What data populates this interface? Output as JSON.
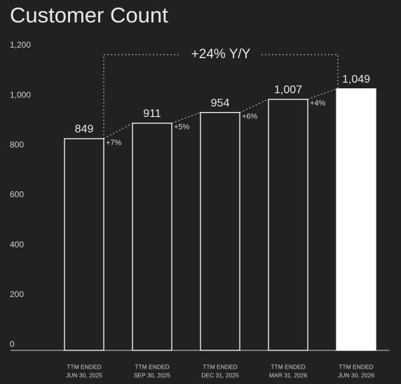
{
  "chart_data": {
    "type": "bar",
    "title": "Customer Count",
    "categories": [
      [
        "TTM ENDED",
        "JUN 30, 2025"
      ],
      [
        "TTM ENDED",
        "SEP 30, 2025"
      ],
      [
        "TTM ENDED",
        "DEC 31, 2025"
      ],
      [
        "TTM ENDED",
        "MAR 31, 2026"
      ],
      [
        "TTM ENDED",
        "JUN 30, 2026"
      ]
    ],
    "values": [
      849,
      911,
      954,
      1007,
      1049
    ],
    "value_labels": [
      "849",
      "911",
      "954",
      "1,007",
      "1,049"
    ],
    "growth_labels": [
      "+7%",
      "+5%",
      "+6%",
      "+4%"
    ],
    "total_growth_label": "+24% Y/Y",
    "color": "#ffffff",
    "highlight": 4,
    "ylim": [
      0,
      1200
    ],
    "yticks": [
      0,
      200,
      400,
      600,
      800,
      {
        "value": 1000,
        "label": "1,000"
      },
      {
        "value": 1200,
        "label": "1,200"
      }
    ],
    "grid": false
  }
}
